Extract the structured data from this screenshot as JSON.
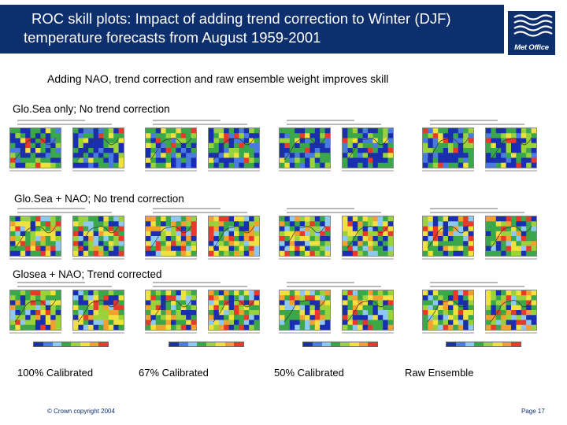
{
  "header": {
    "title_line1": "ROC skill plots: Impact of adding trend correction to Winter (DJF)",
    "title_line2": "temperature  forecasts from August 1959-2001",
    "logo_text": "Met Office",
    "colors": {
      "banner": "#0d2f6e",
      "text": "#ffffff"
    }
  },
  "subtitle": "Adding NAO, trend correction and raw ensemble weight improves skill",
  "sections": [
    {
      "label": "Glo.Sea only; No trend correction"
    },
    {
      "label": "Glo.Sea + NAO; No trend correction"
    },
    {
      "label": "Glosea + NAO; Trend corrected"
    }
  ],
  "columns": [
    {
      "caption": "100% Calibrated"
    },
    {
      "caption": "67% Calibrated"
    },
    {
      "caption": "50% Calibrated"
    },
    {
      "caption": "Raw Ensemble"
    }
  ],
  "colorbar": [
    "#1a2fb0",
    "#4a7ce0",
    "#8cc8f0",
    "#3aa84a",
    "#9ad23c",
    "#f0e040",
    "#f2a030",
    "#e83a2a"
  ],
  "footer": {
    "copyright": "© Crown copyright 2004",
    "page": "Page 17"
  }
}
